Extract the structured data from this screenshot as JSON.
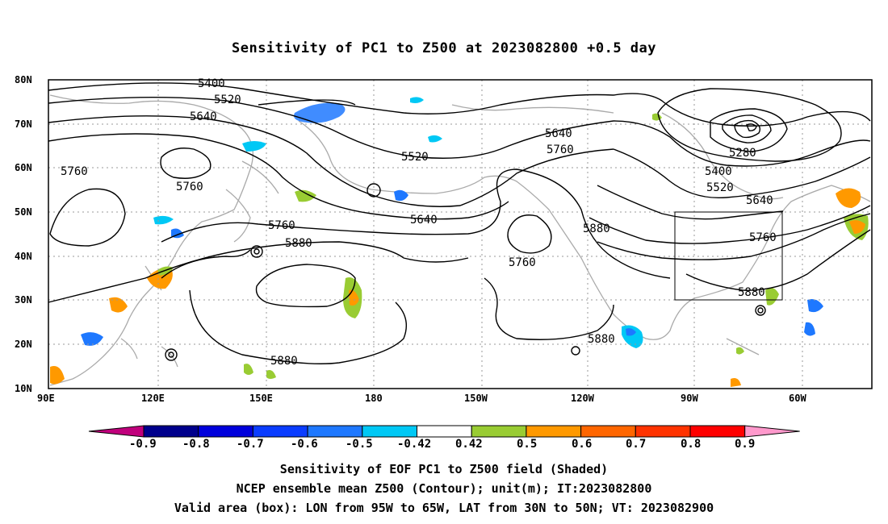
{
  "title": "Sensitivity of PC1 to Z500 at 2023082800 +0.5 day",
  "map": {
    "lat_labels": [
      "80N",
      "70N",
      "60N",
      "50N",
      "40N",
      "30N",
      "20N",
      "10N"
    ],
    "lon_labels": [
      "90E",
      "120E",
      "150E",
      "180",
      "150W",
      "120W",
      "90W",
      "60W"
    ],
    "contour_labels": [
      {
        "text": "5400"
      },
      {
        "text": "5520"
      },
      {
        "text": "5640"
      },
      {
        "text": "5760"
      },
      {
        "text": "5760"
      },
      {
        "text": "5520"
      },
      {
        "text": "5640"
      },
      {
        "text": "5760"
      },
      {
        "text": "5640"
      },
      {
        "text": "5760"
      },
      {
        "text": "5880"
      },
      {
        "text": "5760"
      },
      {
        "text": "5880"
      },
      {
        "text": "5280"
      },
      {
        "text": "5400"
      },
      {
        "text": "5520"
      },
      {
        "text": "5640"
      },
      {
        "text": "5760"
      },
      {
        "text": "5880"
      },
      {
        "text": "5880"
      },
      {
        "text": "5880"
      }
    ],
    "valid_box": {
      "lon_range": "95W to 65W",
      "lat_range": "30N to 50N"
    }
  },
  "colorbar": {
    "labels": [
      "-0.9",
      "-0.8",
      "-0.7",
      "-0.6",
      "-0.5",
      "-0.42",
      "0.42",
      "0.5",
      "0.6",
      "0.7",
      "0.8",
      "0.9"
    ],
    "colors": [
      "#c0007c",
      "#00008c",
      "#0000dc",
      "#0a3cff",
      "#1e78ff",
      "#00c8f5",
      "#ffffff",
      "#99cc33",
      "#ff9900",
      "#ff6600",
      "#ff3300",
      "#ff0000",
      "#ff99cc"
    ]
  },
  "captions": [
    "Sensitivity of EOF PC1 to Z500 field (Shaded)",
    "NCEP ensemble mean Z500 (Contour); unit(m); IT:2023082800",
    "Valid area (box): LON from 95W to 65W, LAT from 30N to 50N; VT: 2023082900"
  ]
}
